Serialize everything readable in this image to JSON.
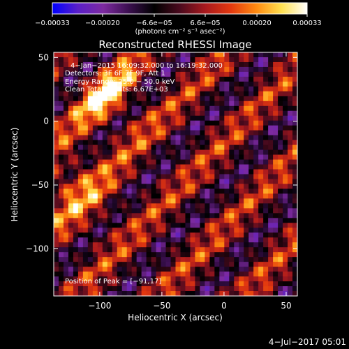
{
  "chart_data": {
    "type": "heatmap",
    "title": "Reconstructed RHESSI Image",
    "xlabel": "Heliocentric X (arcsec)",
    "ylabel": "Heliocentric Y (arcsec)",
    "xlim": [
      -137,
      59
    ],
    "ylim": [
      -137,
      54
    ],
    "x_ticks": [
      -100,
      -50,
      0,
      50
    ],
    "x_tick_labels": [
      "−100",
      "−50",
      "0",
      "50"
    ],
    "y_ticks": [
      -100,
      -50,
      0,
      50
    ],
    "y_tick_labels": [
      "−100",
      "−50",
      "0",
      "50"
    ],
    "colorbar": {
      "range": [
        -0.00033,
        0.00033
      ],
      "ticks": [
        -0.00033,
        -0.0002,
        -6.6e-05,
        6.6e-05,
        0.0002,
        0.00033
      ],
      "tick_labels": [
        "−0.00033",
        "−0.00020",
        "−6.6e−05",
        "6.6e−05",
        "0.00020",
        "0.00033"
      ],
      "units": "(photons cm⁻² s⁻¹ asec⁻²)",
      "colors": [
        "#0000ff",
        "#5a1fc8",
        "#7d2aa0",
        "#3b0f4f",
        "#000000",
        "#4a0a1e",
        "#a8191e",
        "#e3380f",
        "#ff8a10",
        "#ffe050",
        "#ffffff"
      ]
    },
    "annotations": [
      "4−Jan−2015 16:09:32.000 to 16:19:32.000",
      "Detectors: 3F 6F 7F 9F, Att 1",
      "Energy Range: 25.0 − 50.0 keV",
      "Clean    Total counts: 6.67E+03",
      "Position of Peak = [−91,17]"
    ],
    "peak": {
      "x": -91,
      "y": 17
    },
    "grid": false
  },
  "footer_date": "4−Jul−2017 05:01"
}
